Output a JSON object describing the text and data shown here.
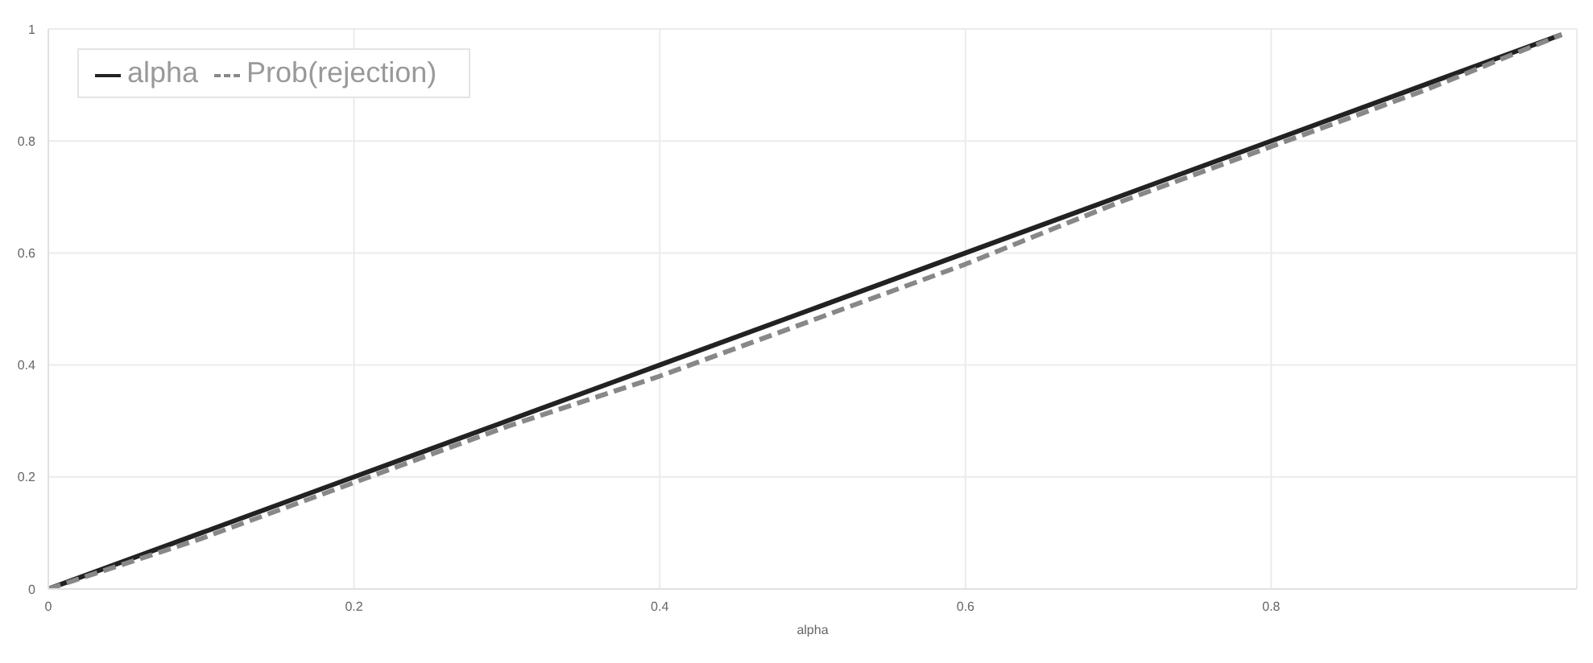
{
  "chart_data": {
    "type": "line",
    "xlabel": "alpha",
    "x": [
      0,
      0.1,
      0.2,
      0.3,
      0.4,
      0.5,
      0.6,
      0.7,
      0.8,
      0.9,
      0.99
    ],
    "series": [
      {
        "name": "alpha",
        "color": "#222222",
        "line_style": "solid",
        "values": [
          0,
          0.1,
          0.2,
          0.3,
          0.4,
          0.5,
          0.6,
          0.7,
          0.8,
          0.9,
          0.99
        ]
      },
      {
        "name": "Prob(rejection)",
        "color": "#888888",
        "line_style": "dashed",
        "values": [
          0,
          0.09,
          0.19,
          0.29,
          0.38,
          0.48,
          0.58,
          0.69,
          0.79,
          0.89,
          0.99
        ]
      }
    ],
    "xlim": [
      0,
      1
    ],
    "xticks": [
      0,
      0.2,
      0.4,
      0.6,
      0.8
    ],
    "ylim": [
      0,
      1
    ],
    "yticks": [
      0,
      0.2,
      0.4,
      0.6,
      0.8,
      1
    ],
    "grid": true,
    "legend": "top left",
    "marker": "none"
  }
}
